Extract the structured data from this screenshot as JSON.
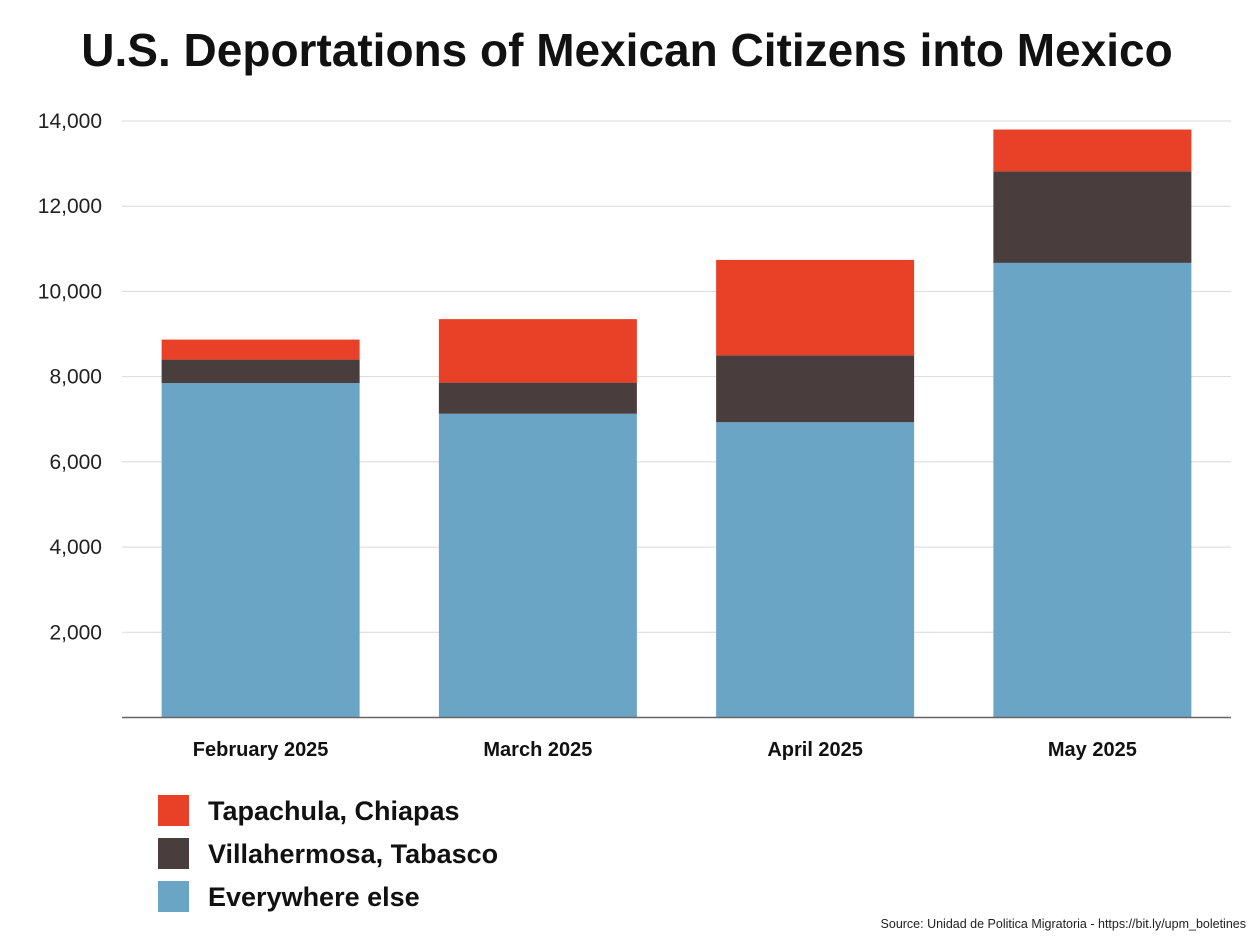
{
  "chart_data": {
    "type": "bar",
    "stacked": true,
    "title": "U.S. Deportations of Mexican Citizens into Mexico",
    "xlabel": "",
    "ylabel": "",
    "categories": [
      "February 2025",
      "March 2025",
      "April 2025",
      "May 2025"
    ],
    "series": [
      {
        "name": "Everywhere else",
        "color": "#6ba5c5",
        "values": [
          7850,
          7130,
          6930,
          10670
        ]
      },
      {
        "name": "Villahermosa, Tabasco",
        "color": "#4a3d3d",
        "values": [
          550,
          730,
          1570,
          2150
        ]
      },
      {
        "name": "Tapachula, Chiapas",
        "color": "#e84127",
        "values": [
          470,
          1490,
          2240,
          980
        ]
      }
    ],
    "ylim": [
      0,
      14000
    ],
    "yticks": [
      "2,000",
      "4,000",
      "6,000",
      "8,000",
      "10,000",
      "12,000",
      "14,000"
    ],
    "ytick_values": [
      2000,
      4000,
      6000,
      8000,
      10000,
      12000,
      14000
    ],
    "grid": true,
    "legend": {
      "position": "bottom-left",
      "order": [
        "Tapachula, Chiapas",
        "Villahermosa, Tabasco",
        "Everywhere else"
      ]
    },
    "source": "Source: Unidad de Politica Migratoria - https://bit.ly/upm_boletines"
  }
}
